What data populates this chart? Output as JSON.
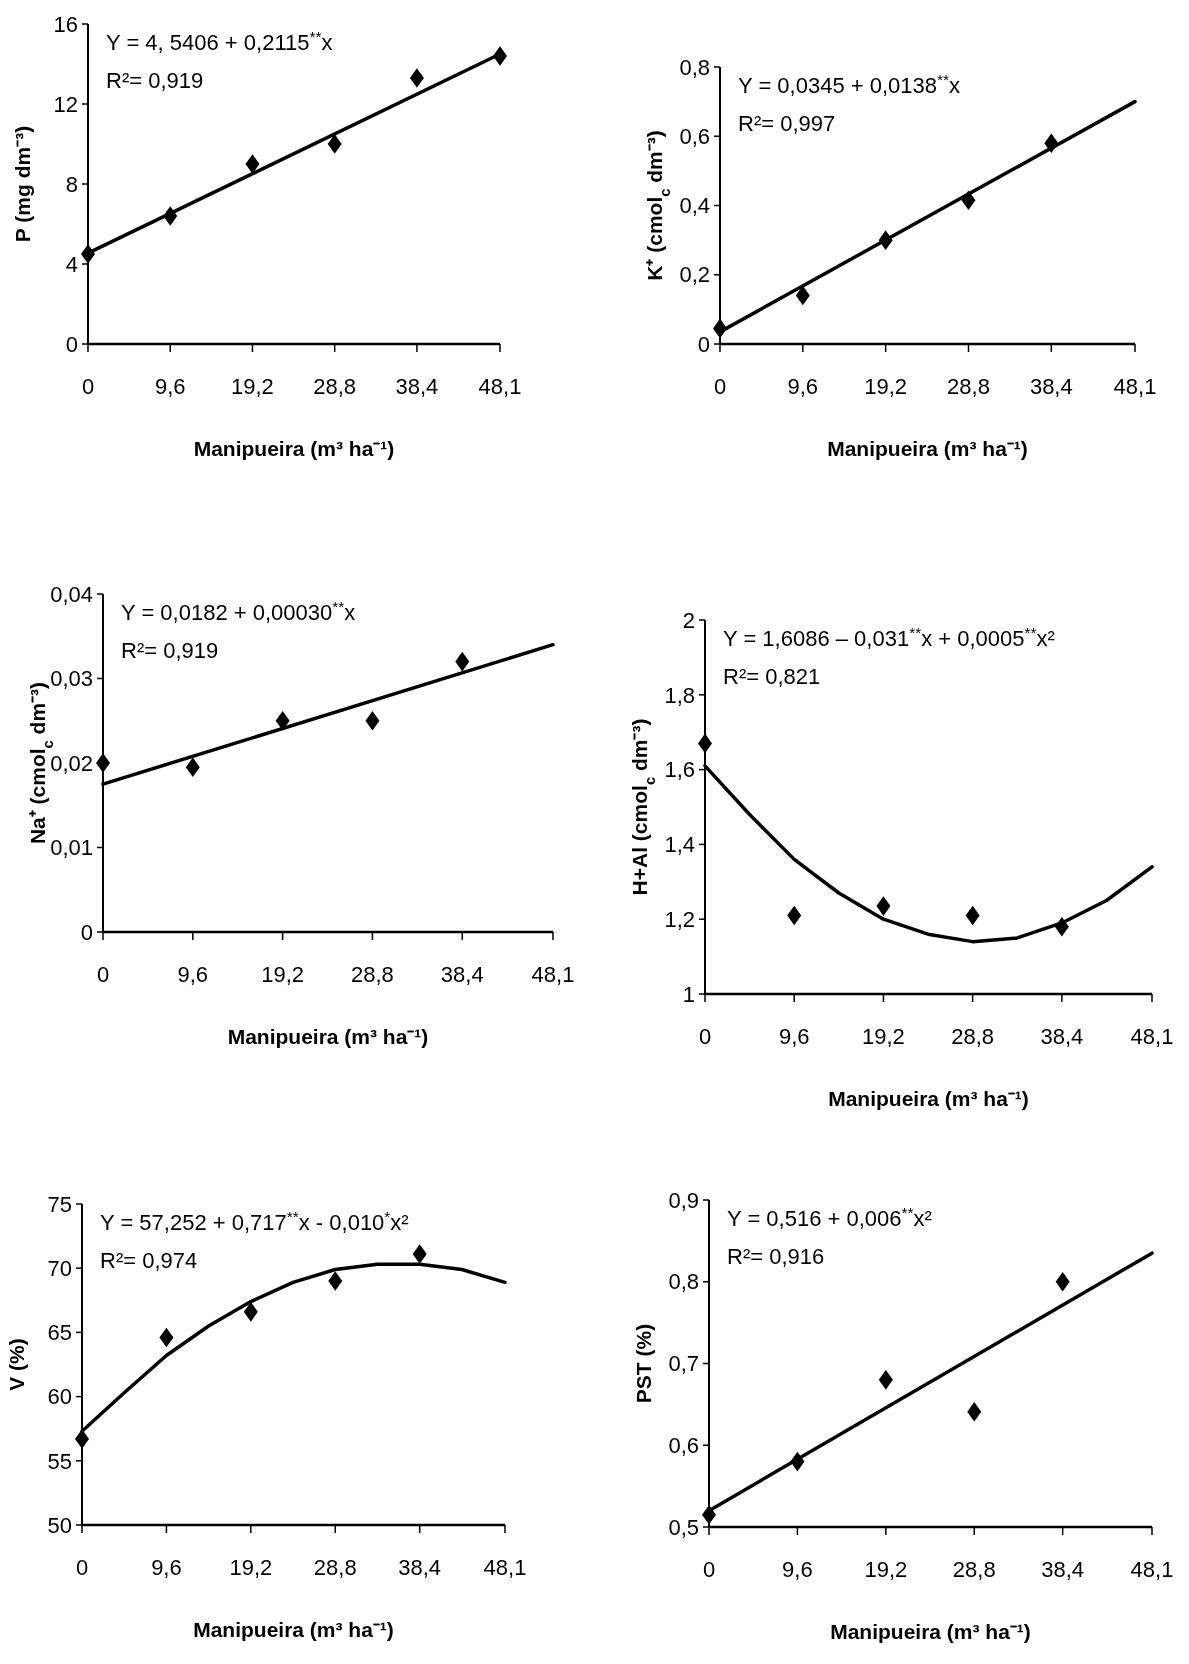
{
  "chart_data": [
    {
      "type": "scatter",
      "xlabel": "Manipueira (m³ ha⁻¹)",
      "ylabel": "P (mg dm⁻³)",
      "xlim": [
        0,
        48.1
      ],
      "xticks": [
        {
          "value": 0,
          "label": "0"
        },
        {
          "value": 9.6,
          "label": "9,6"
        },
        {
          "value": 19.2,
          "label": "19,2"
        },
        {
          "value": 28.8,
          "label": "28,8"
        },
        {
          "value": 38.4,
          "label": "38,4"
        },
        {
          "value": 48.1,
          "label": "48,1"
        }
      ],
      "ylim": [
        0,
        16
      ],
      "yticks": [
        0,
        4,
        8,
        12,
        16
      ],
      "annotations": [
        "Y = 4, 5406 + 0,2115$^{**}$x",
        "R²= 0,919"
      ],
      "series": [
        {
          "type": "scatter",
          "marker": "diamond",
          "color": "#000000",
          "x": [
            0,
            9.6,
            19.2,
            28.8,
            38.4,
            48.1
          ],
          "values": [
            4.5,
            6.4,
            9.0,
            10.0,
            13.3,
            14.4
          ]
        },
        {
          "type": "line",
          "marker": "none",
          "color": "#000000",
          "x": [
            0,
            48.1
          ],
          "values": [
            4.54,
            14.5
          ]
        }
      ]
    },
    {
      "type": "scatter",
      "xlabel": "Manipueira (m³ ha⁻¹)",
      "ylabel": "K⁺ (cmol$_{c}$ dm⁻³)",
      "xlim": [
        0,
        48.1
      ],
      "xticks": [
        {
          "value": 0,
          "label": "0"
        },
        {
          "value": 9.6,
          "label": "9,6"
        },
        {
          "value": 19.2,
          "label": "19,2"
        },
        {
          "value": 28.8,
          "label": "28,8"
        },
        {
          "value": 38.4,
          "label": "38,4"
        },
        {
          "value": 48.1,
          "label": "48,1"
        }
      ],
      "ylim": [
        0,
        0.8
      ],
      "yticks": [
        0,
        {
          "value": 0.2,
          "label": "0,2"
        },
        {
          "value": 0.4,
          "label": "0,4"
        },
        {
          "value": 0.6,
          "label": "0,6"
        },
        {
          "value": 0.8,
          "label": "0,8"
        }
      ],
      "annotations": [
        "Y = 0,0345 + 0,0138$^{**}$x",
        "R²= 0,997"
      ],
      "series": [
        {
          "type": "scatter",
          "marker": "diamond",
          "color": "#000000",
          "x": [
            0,
            9.6,
            19.2,
            28.8,
            38.4
          ],
          "values": [
            0.045,
            0.14,
            0.3,
            0.415,
            0.58
          ]
        },
        {
          "type": "line",
          "marker": "none",
          "color": "#000000",
          "x": [
            0,
            48.1
          ],
          "values": [
            0.035,
            0.7
          ]
        }
      ]
    },
    {
      "type": "scatter",
      "xlabel": "Manipueira (m³ ha⁻¹)",
      "ylabel": "Na⁺ (cmol$_{c}$ dm⁻³)",
      "xlim": [
        0,
        48.1
      ],
      "xticks": [
        {
          "value": 0,
          "label": "0"
        },
        {
          "value": 9.6,
          "label": "9,6"
        },
        {
          "value": 19.2,
          "label": "19,2"
        },
        {
          "value": 28.8,
          "label": "28,8"
        },
        {
          "value": 38.4,
          "label": "38,4"
        },
        {
          "value": 48.1,
          "label": "48,1"
        }
      ],
      "ylim": [
        0,
        0.04
      ],
      "yticks": [
        0,
        {
          "value": 0.01,
          "label": "0,01"
        },
        {
          "value": 0.02,
          "label": "0,02"
        },
        {
          "value": 0.03,
          "label": "0,03"
        },
        {
          "value": 0.04,
          "label": "0,04"
        }
      ],
      "annotations": [
        "Y = 0,0182 + 0,00030$^{**}$x",
        "R²= 0,919"
      ],
      "series": [
        {
          "type": "scatter",
          "marker": "diamond",
          "color": "#000000",
          "x": [
            0,
            9.6,
            19.2,
            28.8,
            38.4
          ],
          "values": [
            0.02,
            0.0195,
            0.025,
            0.025,
            0.032
          ]
        },
        {
          "type": "line",
          "marker": "none",
          "color": "#000000",
          "x": [
            0,
            48.1
          ],
          "values": [
            0.0175,
            0.034
          ]
        }
      ]
    },
    {
      "type": "scatter",
      "xlabel": "Manipueira (m³ ha⁻¹)",
      "ylabel": "H+Al (cmol$_{c}$ dm⁻³)",
      "xlim": [
        0,
        48.1
      ],
      "xticks": [
        {
          "value": 0,
          "label": "0"
        },
        {
          "value": 9.6,
          "label": "9,6"
        },
        {
          "value": 19.2,
          "label": "19,2"
        },
        {
          "value": 28.8,
          "label": "28,8"
        },
        {
          "value": 38.4,
          "label": "38,4"
        },
        {
          "value": 48.1,
          "label": "48,1"
        }
      ],
      "ylim": [
        1,
        2
      ],
      "yticks": [
        1,
        {
          "value": 1.2,
          "label": "1,2"
        },
        {
          "value": 1.4,
          "label": "1,4"
        },
        {
          "value": 1.6,
          "label": "1,6"
        },
        {
          "value": 1.8,
          "label": "1,8"
        },
        2
      ],
      "annotations": [
        "Y = 1,6086 – 0,031$^{**}$x + 0,0005$^{**}$x²",
        "R²= 0,821"
      ],
      "series": [
        {
          "type": "scatter",
          "marker": "diamond",
          "color": "#000000",
          "x": [
            0,
            9.6,
            19.2,
            28.8,
            38.4
          ],
          "values": [
            1.67,
            1.21,
            1.235,
            1.21,
            1.18
          ]
        },
        {
          "type": "line",
          "marker": "none",
          "color": "#000000",
          "x": [
            0,
            4.8,
            9.6,
            14.4,
            19.2,
            24,
            28.8,
            33.6,
            38.4,
            43.2,
            48.1
          ],
          "values": [
            1.61,
            1.48,
            1.36,
            1.27,
            1.2,
            1.16,
            1.14,
            1.15,
            1.19,
            1.25,
            1.34
          ]
        }
      ]
    },
    {
      "type": "scatter",
      "xlabel": "Manipueira (m³ ha⁻¹)",
      "ylabel": "V (%)",
      "xlim": [
        0,
        48.1
      ],
      "xticks": [
        {
          "value": 0,
          "label": "0"
        },
        {
          "value": 9.6,
          "label": "9,6"
        },
        {
          "value": 19.2,
          "label": "19,2"
        },
        {
          "value": 28.8,
          "label": "28,8"
        },
        {
          "value": 38.4,
          "label": "38,4"
        },
        {
          "value": 48.1,
          "label": "48,1"
        }
      ],
      "ylim": [
        50,
        75
      ],
      "yticks": [
        50,
        55,
        60,
        65,
        70,
        75
      ],
      "annotations": [
        "Y = 57,252 + 0,717$^{**}$x - 0,010$^{*}$x²",
        "R²= 0,974"
      ],
      "series": [
        {
          "type": "scatter",
          "marker": "diamond",
          "color": "#000000",
          "x": [
            0,
            9.6,
            19.2,
            28.8,
            38.4
          ],
          "values": [
            56.7,
            64.6,
            66.6,
            69.0,
            71.1
          ]
        },
        {
          "type": "line",
          "marker": "none",
          "color": "#000000",
          "x": [
            0,
            4.8,
            9.6,
            14.4,
            19.2,
            24,
            28.8,
            33.6,
            38.4,
            43.2,
            48.1
          ],
          "values": [
            57.3,
            60.3,
            63.2,
            65.5,
            67.4,
            68.9,
            69.9,
            70.3,
            70.3,
            69.9,
            68.9
          ]
        }
      ]
    },
    {
      "type": "scatter",
      "xlabel": "Manipueira (m³ ha⁻¹)",
      "ylabel": "PST (%)",
      "xlim": [
        0,
        48.1
      ],
      "xticks": [
        {
          "value": 0,
          "label": "0"
        },
        {
          "value": 9.6,
          "label": "9,6"
        },
        {
          "value": 19.2,
          "label": "19,2"
        },
        {
          "value": 28.8,
          "label": "28,8"
        },
        {
          "value": 38.4,
          "label": "38,4"
        },
        {
          "value": 48.1,
          "label": "48,1"
        }
      ],
      "ylim": [
        0.5,
        0.9
      ],
      "yticks": [
        {
          "value": 0.5,
          "label": "0,5"
        },
        {
          "value": 0.6,
          "label": "0,6"
        },
        {
          "value": 0.7,
          "label": "0,7"
        },
        {
          "value": 0.8,
          "label": "0,8"
        },
        {
          "value": 0.9,
          "label": "0,9"
        }
      ],
      "annotations": [
        "Y = 0,516 + 0,006$^{**}$x²",
        "R²= 0,916"
      ],
      "series": [
        {
          "type": "scatter",
          "marker": "diamond",
          "color": "#000000",
          "x": [
            0,
            9.6,
            19.2,
            28.8,
            38.4
          ],
          "values": [
            0.515,
            0.58,
            0.68,
            0.641,
            0.8
          ]
        },
        {
          "type": "line",
          "marker": "none",
          "color": "#000000",
          "x": [
            0,
            48.1
          ],
          "values": [
            0.52,
            0.835
          ]
        }
      ]
    }
  ]
}
